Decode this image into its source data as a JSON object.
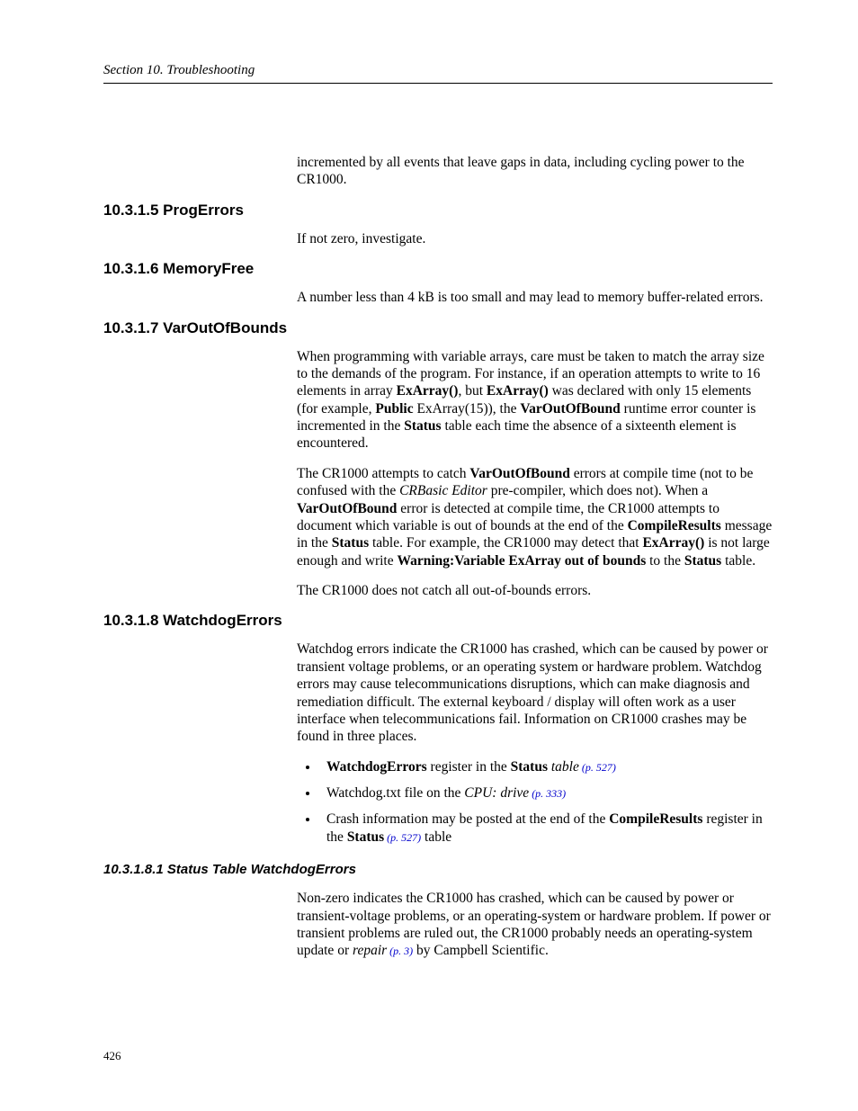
{
  "header": {
    "running": "Section 10.  Troubleshooting"
  },
  "intro_paragraph": "incremented by all events that leave gaps in data, including cycling power to the CR1000.",
  "sections": {
    "progErrors": {
      "heading": "10.3.1.5 ProgErrors",
      "body": "If not zero, investigate."
    },
    "memoryFree": {
      "heading": "10.3.1.6 MemoryFree",
      "body": "A number less than 4 kB is too small and may lead to memory buffer-related errors."
    },
    "varOut": {
      "heading": "10.3.1.7 VarOutOfBounds",
      "p1_parts": {
        "t1": "When programming with variable arrays, care must be taken to match the array size to the demands of the program.  For instance, if an operation attempts to write to 16 elements in array ",
        "b1": "ExArray()",
        "t2": ", but ",
        "b2": "ExArray()",
        "t3": " was declared with only 15 elements (for example, ",
        "b3": "Public",
        "t4": " ExArray(15)), the ",
        "b4": "VarOutOfBound",
        "t5": " runtime error counter is incremented in the ",
        "b5": "Status",
        "t6": " table each time the absence of a sixteenth element is encountered."
      },
      "p2_parts": {
        "t1": "The CR1000 attempts to catch ",
        "b1": "VarOutOfBound",
        "t2": " errors at compile time (not to be confused with the ",
        "i1": "CRBasic Editor",
        "t3": " pre-compiler, which does not).  When a ",
        "b2": "VarOutOfBound",
        "t4": " error is detected at compile time, the CR1000 attempts to document which variable is out of bounds at the end of the ",
        "b3": "CompileResults",
        "t5": " message in the ",
        "b4": "Status",
        "t6": " table.  For example, the CR1000 may detect that ",
        "b5": "ExArray()",
        "t7": " is not large enough and write ",
        "b6": "Warning:Variable ExArray out of bounds",
        "t8": " to the ",
        "b7": "Status",
        "t9": " table."
      },
      "p3": "The CR1000 does not catch all out-of-bounds errors."
    },
    "watchdog": {
      "heading": "10.3.1.8 WatchdogErrors",
      "p1": "Watchdog errors indicate the CR1000 has crashed, which can be caused by power or transient voltage problems, or an operating system or hardware problem.  Watchdog errors may cause telecommunications disruptions, which can make diagnosis and remediation difficult.  The external keyboard / display will often work as a user interface when telecommunications fail.  Information on CR1000 crashes may be found in three places.",
      "bullets": {
        "b1": {
          "b1t": "WatchdogErrors",
          "t1": " register in the ",
          "b2t": "Status",
          "t2": " ",
          "i1": "table",
          "ref": " (p. 527)"
        },
        "b2": {
          "t1": "Watchdog.txt file on the ",
          "i1": "CPU: drive",
          "ref": " (p. 333)"
        },
        "b3": {
          "t1": "Crash information may be posted at the end of the ",
          "b1t": "CompileResults",
          "t2": " register in the ",
          "b2t": "Status",
          "ref": " (p. 527)",
          "t3": "  table"
        }
      },
      "sub": {
        "heading": "10.3.1.8.1 Status Table WatchdogErrors",
        "p1_parts": {
          "t1": "Non-zero indicates the CR1000 has crashed, which can be caused by power or transient-voltage problems, or an operating-system or hardware problem.  If power or transient problems are ruled out, the CR1000 probably needs an operating-system update or ",
          "i1": "repair",
          "ref": " (p. 3)",
          "t2": " by Campbell Scientific."
        }
      }
    }
  },
  "pageNumber": "426"
}
